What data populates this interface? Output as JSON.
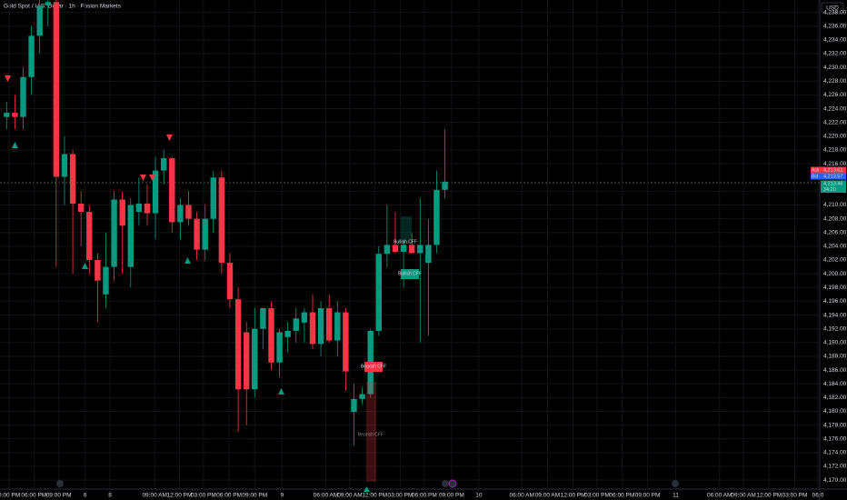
{
  "chart_data": {
    "type": "candlestick",
    "title": "Gold Spot / U.S. Dollar · 1h · Fusion Markets",
    "currency": "USD",
    "up_color": "#089981",
    "down_color": "#f23645",
    "grid": true,
    "x": [
      0,
      1,
      2,
      3,
      4,
      5,
      6,
      7,
      8,
      9,
      10,
      11,
      12,
      13,
      14,
      15,
      16,
      17,
      18,
      19,
      20,
      21,
      22,
      23,
      24,
      25,
      26,
      27,
      28,
      29,
      30,
      31,
      32,
      33,
      34,
      35,
      36,
      37,
      38,
      39,
      40,
      41,
      42,
      43,
      44,
      45,
      46,
      47,
      48,
      49,
      50,
      51,
      52,
      53
    ],
    "open": [
      4222.8,
      4223.4,
      4222.8,
      4228.6,
      4234.6,
      4239.0,
      4239.5,
      4214.1,
      4217.4,
      4210.2,
      4209.0,
      4202.0,
      4197.0,
      4201.0,
      4210.8,
      4201.0,
      4209.0,
      4210.2,
      4208.8,
      4215.0,
      4216.8,
      4207.5,
      4210.0,
      4208.0,
      4203.5,
      4208.0,
      4214.0,
      4201.6,
      4196.3,
      4191.5,
      4183.2,
      4192.0,
      4195.0,
      4187.1,
      4190.8,
      4191.7,
      4192.9,
      4194.4,
      4189.8,
      4195.0,
      4190.3,
      4194.4,
      4179.9,
      4181.8,
      4182.5,
      4191.7,
      4202.9,
      4204.2,
      4203.2,
      4204.2,
      4203.0,
      4201.6,
      4204.2,
      4212.2
    ],
    "high": [
      4225.0,
      4226.0,
      4230.0,
      4236.0,
      4240.0,
      4240.0,
      4240.0,
      4220.0,
      4218.0,
      4212.0,
      4210.0,
      4203.0,
      4206.0,
      4212.0,
      4212.0,
      4211.0,
      4214.0,
      4213.0,
      4217.0,
      4218.0,
      4217.0,
      4211.0,
      4212.0,
      4209.0,
      4210.0,
      4215.0,
      4215.0,
      4203.0,
      4198.0,
      4193.0,
      4195.0,
      4195.0,
      4196.0,
      4192.0,
      4193.0,
      4195.0,
      4195.0,
      4197.0,
      4196.0,
      4197.0,
      4196.0,
      4195.0,
      4184.0,
      4183.5,
      4192.0,
      4204.0,
      4210.0,
      4209.0,
      4205.0,
      4206.0,
      4211.0,
      4208.0,
      4215.0,
      4221.0
    ],
    "low": [
      4221.0,
      4221.0,
      4221.0,
      4226.0,
      4232.0,
      4236.0,
      4201.0,
      4210.0,
      4200.0,
      4204.0,
      4200.0,
      4193.0,
      4195.0,
      4199.0,
      4200.0,
      4198.0,
      4207.0,
      4207.0,
      4205.0,
      4213.0,
      4206.0,
      4205.0,
      4207.0,
      4202.0,
      4202.0,
      4206.0,
      4200.0,
      4195.0,
      4177.0,
      4178.0,
      4182.0,
      4189.0,
      4186.0,
      4185.0,
      4188.5,
      4190.0,
      4190.0,
      4189.0,
      4188.0,
      4190.0,
      4188.0,
      4183.0,
      4175.0,
      4181.0,
      4182.0,
      4191.0,
      4201.0,
      4203.0,
      4198.0,
      4203.0,
      4190.0,
      4191.0,
      4203.0,
      4211.0
    ],
    "close": [
      4223.4,
      4222.8,
      4228.6,
      4234.6,
      4239.0,
      4239.5,
      4214.1,
      4217.4,
      4210.2,
      4209.0,
      4202.0,
      4199.0,
      4201.0,
      4210.8,
      4207.0,
      4210.0,
      4210.2,
      4208.8,
      4215.0,
      4216.8,
      4207.5,
      4210.0,
      4208.0,
      4203.5,
      4208.0,
      4214.0,
      4201.6,
      4196.3,
      4183.2,
      4183.2,
      4192.0,
      4195.0,
      4187.1,
      4191.5,
      4191.7,
      4193.5,
      4194.4,
      4189.8,
      4195.0,
      4190.3,
      4194.4,
      4185.8,
      4181.8,
      4182.5,
      4191.7,
      4202.9,
      4204.2,
      4203.2,
      4204.2,
      4203.0,
      4204.2,
      4204.2,
      4212.2,
      4213.4
    ],
    "xlim": [
      -0.8,
      98.1
    ],
    "xticks": [
      {
        "value": 0.3,
        "label": "0:00 PM"
      },
      {
        "value": 3.3,
        "label": "06:00 PM"
      },
      {
        "value": 6.3,
        "label": "09:00 PM"
      },
      {
        "value": 9.5,
        "label": "6"
      },
      {
        "value": 12.5,
        "label": "8"
      },
      {
        "value": 17.9,
        "label": "09:00 AM"
      },
      {
        "value": 20.9,
        "label": "12:00 PM"
      },
      {
        "value": 23.8,
        "label": "03:00 PM"
      },
      {
        "value": 26.9,
        "label": "06:00 PM"
      },
      {
        "value": 30,
        "label": "09:00 PM"
      },
      {
        "value": 33.3,
        "label": "9"
      },
      {
        "value": 38.6,
        "label": "06:00 AM"
      },
      {
        "value": 41.5,
        "label": "09:00 AM"
      },
      {
        "value": 44.5,
        "label": "12:00 PM"
      },
      {
        "value": 47.6,
        "label": "03:00 PM"
      },
      {
        "value": 50.5,
        "label": "06:00 PM"
      },
      {
        "value": 53.8,
        "label": "09:00 PM"
      },
      {
        "value": 57.1,
        "label": "10"
      },
      {
        "value": 62.3,
        "label": "06:00 AM"
      },
      {
        "value": 65.4,
        "label": "09:00 AM"
      },
      {
        "value": 68.5,
        "label": "12:00 PM"
      },
      {
        "value": 71.4,
        "label": "03:00 PM"
      },
      {
        "value": 74.4,
        "label": "06:00 PM"
      },
      {
        "value": 77.5,
        "label": "09:00 PM"
      },
      {
        "value": 80.9,
        "label": "11"
      },
      {
        "value": 86.2,
        "label": "06:00 AM"
      },
      {
        "value": 89.1,
        "label": "09:00 AM"
      },
      {
        "value": 92.2,
        "label": "12:00 PM"
      },
      {
        "value": 95.3,
        "label": "03:00 PM"
      },
      {
        "value": 98.1,
        "label": "06:0"
      }
    ],
    "ylim": [
      4168.7,
      4239.8
    ],
    "yticks": [
      {
        "value": 4170,
        "label": "4,170.00"
      },
      {
        "value": 4172,
        "label": "4,172.00"
      },
      {
        "value": 4174,
        "label": "4,174.00"
      },
      {
        "value": 4176,
        "label": "4,176.00"
      },
      {
        "value": 4178,
        "label": "4,178.00"
      },
      {
        "value": 4180,
        "label": "4,180.00"
      },
      {
        "value": 4182,
        "label": "4,182.00"
      },
      {
        "value": 4184,
        "label": "4,184.00"
      },
      {
        "value": 4186,
        "label": "4,186.00"
      },
      {
        "value": 4188,
        "label": "4,188.00"
      },
      {
        "value": 4190,
        "label": "4,190.00"
      },
      {
        "value": 4192,
        "label": "4,192.00"
      },
      {
        "value": 4194,
        "label": "4,194.00"
      },
      {
        "value": 4196,
        "label": "4,196.00"
      },
      {
        "value": 4198,
        "label": "4,198.00"
      },
      {
        "value": 4200,
        "label": "4,200.00"
      },
      {
        "value": 4202,
        "label": "4,202.00"
      },
      {
        "value": 4204,
        "label": "4,204.00"
      },
      {
        "value": 4206,
        "label": "4,206.00"
      },
      {
        "value": 4208,
        "label": "4,208.00"
      },
      {
        "value": 4210,
        "label": "4,210.00"
      },
      {
        "value": 4212,
        "label": "4,212.00"
      },
      {
        "value": 4216,
        "label": "4,216.00"
      },
      {
        "value": 4218,
        "label": "4,218.00"
      },
      {
        "value": 4220,
        "label": "4,220.00"
      },
      {
        "value": 4222,
        "label": "4,222.00"
      },
      {
        "value": 4224,
        "label": "4,224.00"
      },
      {
        "value": 4226,
        "label": "4,226.00"
      },
      {
        "value": 4228,
        "label": "4,228.00"
      },
      {
        "value": 4230,
        "label": "4,230.00"
      },
      {
        "value": 4232,
        "label": "4,232.00"
      },
      {
        "value": 4234,
        "label": "4,234.00"
      },
      {
        "value": 4236,
        "label": "4,236.00"
      },
      {
        "value": 4238,
        "label": "4,238.00"
      }
    ],
    "price_labels": [
      {
        "name": "Ask",
        "value": 4213.61,
        "label": "4,213.61",
        "color": "#f23645"
      },
      {
        "name": "Bid",
        "value": 4213.57,
        "label": "4,213.57",
        "color": "#2962ff"
      },
      {
        "value": 4213.46,
        "label": "4,213.46",
        "color": "#089981"
      }
    ],
    "countdown": "34:20",
    "annotations": [
      {
        "text": "Bullish CFF",
        "color": "#089981"
      },
      {
        "text": "Bullish CFF",
        "color": "#089981"
      },
      {
        "text": "Bearish CFF",
        "color": "#f23645"
      },
      {
        "text": "Bearish CFF",
        "color": "#f23645"
      }
    ]
  }
}
